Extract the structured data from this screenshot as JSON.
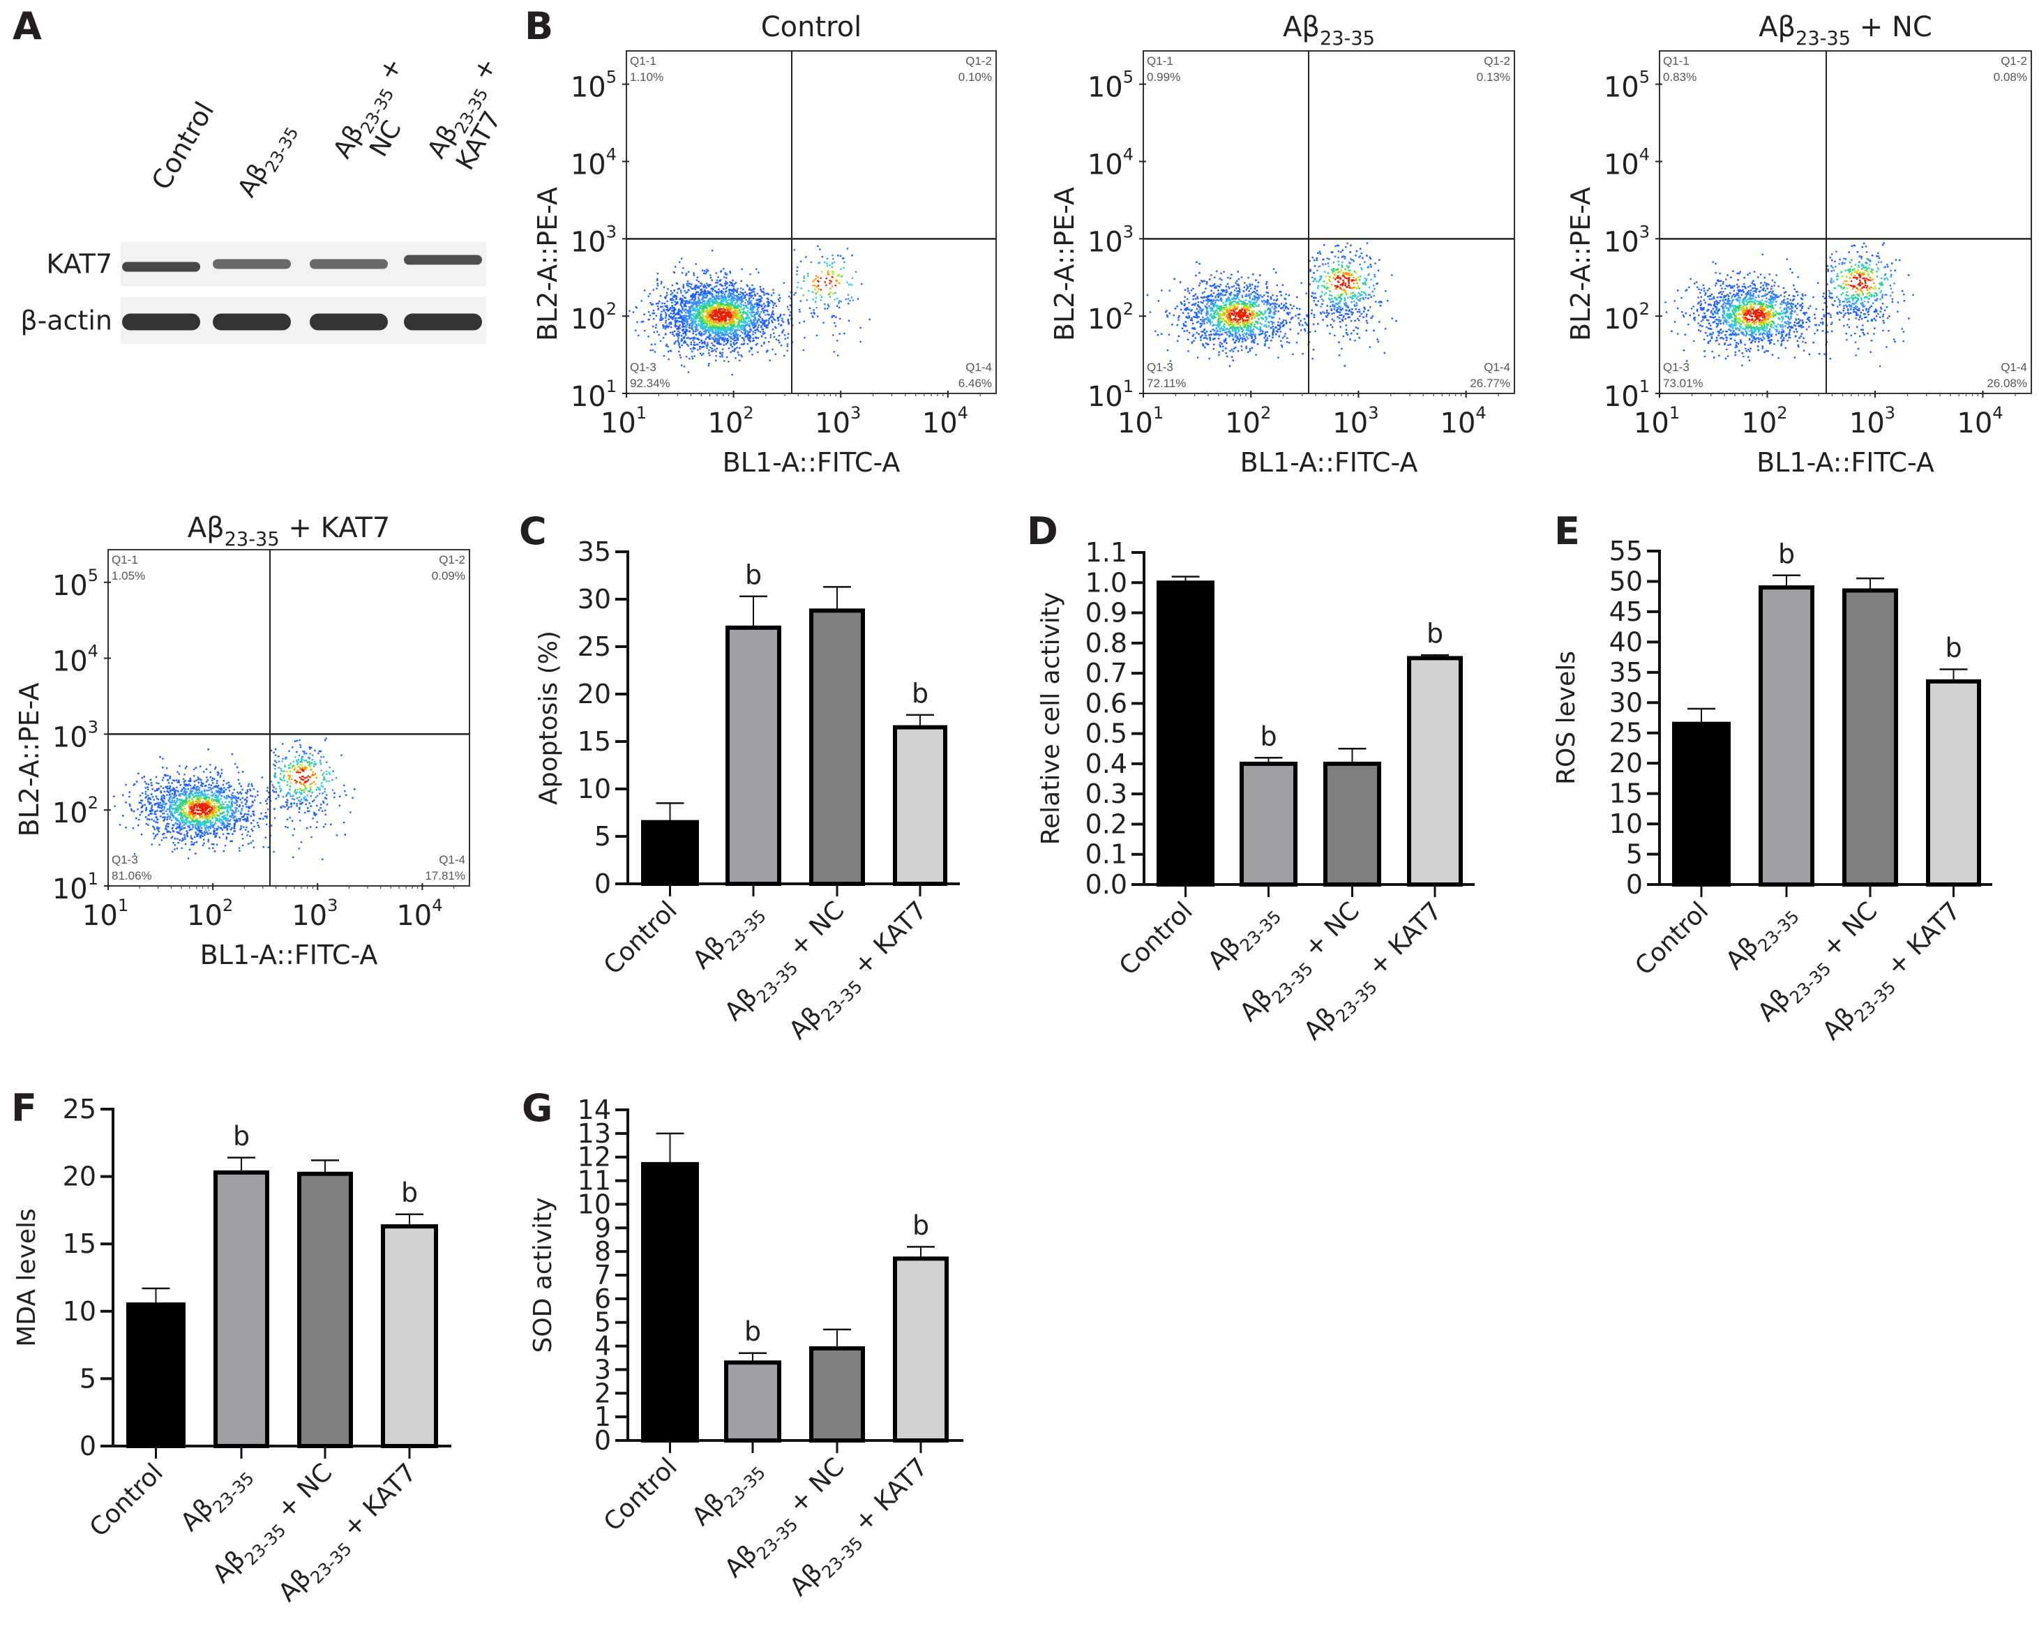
{
  "figure": {
    "panels": {
      "A": "A",
      "B": "B",
      "C": "C",
      "D": "D",
      "E": "E",
      "F": "F",
      "G": "G"
    }
  },
  "western_blot": {
    "lanes": [
      {
        "line1": "Control",
        "line2": ""
      },
      {
        "line1": "Aβ",
        "sub": "23-35",
        "line2": ""
      },
      {
        "line1": "Aβ",
        "sub": "23-35",
        "plus": " +",
        "line2": "NC"
      },
      {
        "line1": "Aβ",
        "sub": "23-35",
        "plus": " +",
        "line2": "KAT7"
      }
    ],
    "rows": [
      {
        "label": "KAT7",
        "intensity": [
          0.85,
          0.6,
          0.6,
          0.8
        ]
      },
      {
        "label": "β-actin",
        "intensity": [
          1.0,
          1.0,
          1.0,
          1.0
        ]
      }
    ]
  },
  "groups": [
    {
      "name": "Control",
      "base": "Control",
      "sub": "",
      "suffix": ""
    },
    {
      "name": "Aβ23-35",
      "base": "Aβ",
      "sub": "23-35",
      "suffix": ""
    },
    {
      "name": "Aβ23-35 + NC",
      "base": "Aβ",
      "sub": "23-35",
      "suffix": " + NC"
    },
    {
      "name": "Aβ23-35 + KAT7",
      "base": "Aβ",
      "sub": "23-35",
      "suffix": " + KAT7"
    }
  ],
  "bar_colors": [
    "#000000",
    "#a0a0a4",
    "#808080",
    "#d3d3d3"
  ],
  "chart_data": [
    {
      "id": "B",
      "type": "scatter",
      "xlabel": "BL1-A::FITC-A",
      "ylabel": "BL2-A::PE-A",
      "x_scale": "log",
      "y_scale": "log",
      "x_ticks": [
        "10^1",
        "10^2",
        "10^3",
        "10^4"
      ],
      "y_ticks": [
        "10^1",
        "10^2",
        "10^3",
        "10^4",
        "10^5"
      ],
      "plots": [
        {
          "title_base": "Control",
          "title_sub": "",
          "title_suffix": "",
          "quadrants": {
            "Q1-1": "1.10%",
            "Q1-2": "0.10%",
            "Q1-3": "92.34%",
            "Q1-4": "6.46%"
          }
        },
        {
          "title_base": "Aβ",
          "title_sub": "23-35",
          "title_suffix": "",
          "quadrants": {
            "Q1-1": "0.99%",
            "Q1-2": "0.13%",
            "Q1-3": "72.11%",
            "Q1-4": "26.77%"
          }
        },
        {
          "title_base": "Aβ",
          "title_sub": "23-35",
          "title_suffix": " + NC",
          "quadrants": {
            "Q1-1": "0.83%",
            "Q1-2": "0.08%",
            "Q1-3": "73.01%",
            "Q1-4": "26.08%"
          }
        },
        {
          "title_base": "Aβ",
          "title_sub": "23-35",
          "title_suffix": " + KAT7",
          "quadrants": {
            "Q1-1": "1.05%",
            "Q1-2": "0.09%",
            "Q1-3": "81.06%",
            "Q1-4": "17.81%"
          }
        }
      ]
    },
    {
      "id": "C",
      "type": "bar",
      "title": "",
      "ylabel": "Apoptosis (%)",
      "ylim": [
        0,
        35
      ],
      "yticks": [
        0,
        5,
        10,
        15,
        20,
        25,
        30,
        35
      ],
      "categories": [
        "Control",
        "Aβ23-35",
        "Aβ23-35 + NC",
        "Aβ23-35 + KAT7"
      ],
      "values": [
        6.5,
        27.0,
        28.8,
        16.5
      ],
      "errors": [
        2.0,
        3.3,
        2.5,
        1.3
      ],
      "annotations": [
        "",
        "b",
        "",
        "b"
      ]
    },
    {
      "id": "D",
      "type": "bar",
      "title": "",
      "ylabel": "Relative cell activity",
      "ylim": [
        0,
        1.1
      ],
      "yticks": [
        0.0,
        0.1,
        0.2,
        0.3,
        0.4,
        0.5,
        0.6,
        0.7,
        0.8,
        0.9,
        1.0,
        1.1
      ],
      "ytick_labels": [
        "0.0",
        "0.1",
        "0.2",
        "0.3",
        "0.4",
        "0.5",
        "0.6",
        "0.7",
        "0.8",
        "0.9",
        "1.0",
        "1.1"
      ],
      "categories": [
        "Control",
        "Aβ23-35",
        "Aβ23-35 + NC",
        "Aβ23-35 + KAT7"
      ],
      "values": [
        1.0,
        0.4,
        0.4,
        0.75
      ],
      "errors": [
        0.02,
        0.02,
        0.05,
        0.01
      ],
      "annotations": [
        "",
        "b",
        "",
        "b"
      ]
    },
    {
      "id": "E",
      "type": "bar",
      "title": "",
      "ylabel": "ROS levels",
      "ylim": [
        0,
        55
      ],
      "yticks": [
        0,
        5,
        10,
        15,
        20,
        25,
        30,
        35,
        40,
        45,
        50,
        55
      ],
      "categories": [
        "Control",
        "Aβ23-35",
        "Aβ23-35 + NC",
        "Aβ23-35 + KAT7"
      ],
      "values": [
        26.5,
        49.0,
        48.5,
        33.5
      ],
      "errors": [
        2.5,
        2.0,
        2.0,
        2.0
      ],
      "annotations": [
        "",
        "b",
        "",
        "b"
      ]
    },
    {
      "id": "F",
      "type": "bar",
      "title": "",
      "ylabel": "MDA levels",
      "ylim": [
        0,
        25
      ],
      "yticks": [
        0,
        5,
        10,
        15,
        20,
        25
      ],
      "categories": [
        "Control",
        "Aβ23-35",
        "Aβ23-35 + NC",
        "Aβ23-35 + KAT7"
      ],
      "values": [
        10.5,
        20.3,
        20.2,
        16.3
      ],
      "errors": [
        1.2,
        1.1,
        1.0,
        0.9
      ],
      "annotations": [
        "",
        "b",
        "",
        "b"
      ]
    },
    {
      "id": "G",
      "type": "bar",
      "title": "",
      "ylabel": "SOD activity",
      "ylim": [
        0,
        14
      ],
      "yticks": [
        0,
        1,
        2,
        3,
        4,
        5,
        6,
        7,
        8,
        9,
        10,
        11,
        12,
        13,
        14
      ],
      "categories": [
        "Control",
        "Aβ23-35",
        "Aβ23-35 + NC",
        "Aβ23-35 + KAT7"
      ],
      "values": [
        11.7,
        3.3,
        3.9,
        7.7
      ],
      "errors": [
        1.3,
        0.4,
        0.8,
        0.5
      ],
      "annotations": [
        "",
        "b",
        "",
        "b"
      ]
    }
  ]
}
